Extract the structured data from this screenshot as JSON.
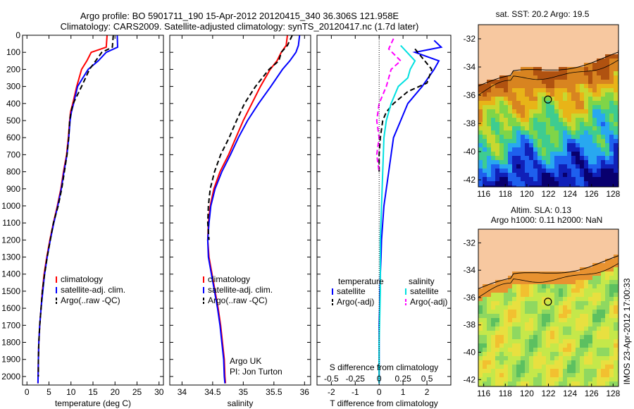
{
  "header": {
    "title_line1": "Argo profile: BO 5901711_190 15-Apr-2012 20120415_340 36.306S 121.958E",
    "title_line2": "Climatology: CARS2009. Satellite-adjusted climatology: synTS_20120417.nc (1.7d later)"
  },
  "colors": {
    "climatology": "#ff0000",
    "satellite": "#0000ff",
    "argo": "#000000",
    "salinity_satellite": "#00e0e0",
    "salinity_argo": "#ff00ff",
    "land": "#f7c8a0"
  },
  "depth_axis": {
    "ticks": [
      0,
      100,
      200,
      300,
      400,
      500,
      600,
      700,
      800,
      900,
      1000,
      1100,
      1200,
      1300,
      1400,
      1500,
      1600,
      1700,
      1800,
      1900,
      2000
    ],
    "ylim": [
      0,
      2050
    ],
    "reversed": true
  },
  "chart_data": [
    {
      "type": "line",
      "id": "temperature",
      "xlabel": "temperature (deg C)",
      "xlim": [
        -1,
        31
      ],
      "xticks": [
        0,
        5,
        10,
        15,
        20,
        25,
        30
      ],
      "legend": [
        "climatology",
        "satellite-adj. clim.",
        "Argo(..raw -QC)"
      ],
      "legend_placement": "lower-center",
      "series": [
        {
          "name": "climatology",
          "style": "solid",
          "x": [
            18.2,
            18.0,
            14.6,
            13.6,
            12.4,
            11.3,
            10.4,
            9.9,
            9.7,
            9.4,
            9.0,
            8.3,
            7.7,
            6.9,
            6.0,
            5.2,
            4.5,
            3.9,
            3.5,
            3.2,
            2.9,
            2.7,
            2.6,
            2.5
          ],
          "y": [
            0,
            70,
            100,
            150,
            200,
            300,
            400,
            450,
            500,
            600,
            700,
            800,
            900,
            1000,
            1100,
            1200,
            1300,
            1400,
            1500,
            1600,
            1700,
            1800,
            1900,
            2040
          ]
        },
        {
          "name": "satellite-adj. clim.",
          "style": "solid",
          "x": [
            20.5,
            20.6,
            18.0,
            16.2,
            13.9,
            11.5,
            10.6,
            10.1,
            9.8,
            9.5,
            9.1,
            8.4,
            7.8,
            7.0,
            6.1,
            5.3,
            4.6,
            4.0,
            3.6,
            3.2,
            2.9,
            2.7,
            2.6,
            2.5
          ],
          "y": [
            0,
            70,
            100,
            150,
            200,
            300,
            400,
            450,
            500,
            600,
            700,
            800,
            900,
            1000,
            1100,
            1200,
            1300,
            1400,
            1500,
            1600,
            1700,
            1800,
            1900,
            2040
          ]
        },
        {
          "name": "Argo(..raw -QC)",
          "style": "dashed",
          "x": [
            19.6,
            19.4,
            17.0,
            15.6,
            14.2,
            12.4,
            10.5,
            10.0,
            9.7,
            9.5,
            9.1,
            8.5,
            7.9,
            7.1,
            6.0,
            5.3,
            4.6,
            4.0,
            3.5,
            3.2,
            2.9,
            2.7,
            2.6,
            2.6
          ],
          "y": [
            0,
            70,
            100,
            150,
            200,
            300,
            400,
            450,
            500,
            600,
            700,
            800,
            900,
            1000,
            1100,
            1200,
            1300,
            1400,
            1500,
            1600,
            1700,
            1800,
            1900,
            2000
          ]
        }
      ]
    },
    {
      "type": "line",
      "id": "salinity",
      "xlabel": "salinity",
      "xlim": [
        33.8,
        36.1
      ],
      "xticks": [
        34,
        34.5,
        35,
        35.5,
        36
      ],
      "xtick_labels": [
        "34",
        "34.5",
        "35",
        "35.5",
        "36"
      ],
      "legend": [
        "climatology",
        "satellite-adj. clim.",
        "Argo(..raw -QC)"
      ],
      "legend_placement": "lower-center",
      "annotation": [
        "Argo UK",
        "PI: Jon Turton"
      ],
      "series": [
        {
          "name": "climatology",
          "style": "solid",
          "x": [
            35.72,
            35.7,
            35.62,
            35.55,
            35.44,
            35.28,
            35.14,
            35.0,
            34.88,
            34.76,
            34.62,
            34.52,
            34.46,
            34.43,
            34.42,
            34.44,
            34.49,
            34.54,
            34.59,
            34.63,
            34.66,
            34.69,
            34.7,
            34.71
          ],
          "y": [
            0,
            60,
            100,
            150,
            200,
            300,
            400,
            500,
            600,
            700,
            800,
            900,
            1000,
            1100,
            1200,
            1300,
            1400,
            1500,
            1600,
            1700,
            1800,
            1900,
            2000,
            2040
          ]
        },
        {
          "name": "satellite-adj. clim.",
          "style": "solid",
          "x": [
            35.92,
            35.9,
            35.86,
            35.76,
            35.64,
            35.45,
            35.25,
            35.07,
            34.92,
            34.79,
            34.65,
            34.54,
            34.47,
            34.44,
            34.42,
            34.43,
            34.48,
            34.53,
            34.58,
            34.62,
            34.65,
            34.68,
            34.69,
            34.7
          ],
          "y": [
            0,
            60,
            100,
            150,
            200,
            300,
            400,
            500,
            600,
            700,
            800,
            900,
            1000,
            1100,
            1200,
            1300,
            1400,
            1500,
            1600,
            1700,
            1800,
            1900,
            2000,
            2040
          ]
        },
        {
          "name": "Argo(..raw -QC)",
          "style": "dashed",
          "x": [
            35.8,
            35.76,
            35.72,
            35.62,
            35.58,
            35.42,
            35.2,
            35.02,
            34.89,
            34.77,
            34.63,
            34.53,
            34.46,
            34.43,
            34.42,
            34.44
          ],
          "y": [
            0,
            30,
            60,
            100,
            150,
            200,
            300,
            400,
            500,
            600,
            700,
            800,
            900,
            1000,
            1100,
            1200
          ]
        }
      ]
    },
    {
      "type": "line",
      "id": "difference",
      "xlabel": "T difference from climatology",
      "xlabel_top": "S difference from climatology",
      "xlim": [
        -2.6,
        3.0
      ],
      "xticks_T": [
        -2,
        -1,
        0,
        1,
        2
      ],
      "xticks_S": [
        -0.5,
        -0.25,
        0,
        0.25,
        0.5
      ],
      "xtick_labels_S": [
        "-0.5",
        "-0.25",
        "0",
        "0.25",
        "0.5"
      ],
      "legend_temperature_title": "temperature",
      "legend_salinity_title": "salinity",
      "legend": [
        "satellite",
        "Argo(-adj)",
        "satellite",
        "Argo(-adj)"
      ],
      "series": [
        {
          "name": "satellite",
          "group": "temperature",
          "style": "solid",
          "x": [
            2.3,
            2.6,
            1.5,
            2.5,
            2.3,
            1.8,
            1.2,
            0.9,
            0.6,
            0.5,
            0.4,
            0.3,
            0.2,
            0.15,
            0.1,
            0.08,
            0.05,
            0.03,
            0.02,
            0.0,
            0.0,
            0.0,
            0.0
          ],
          "y": [
            30,
            70,
            100,
            150,
            200,
            300,
            400,
            500,
            600,
            700,
            800,
            900,
            1000,
            1100,
            1200,
            1300,
            1400,
            1500,
            1600,
            1700,
            1800,
            1900,
            2040
          ]
        },
        {
          "name": "Argo(-adj)",
          "group": "temperature",
          "style": "dashed",
          "x": [
            1.5,
            2.2,
            2.0,
            1.2,
            0.6,
            0.3,
            0.15,
            0.05,
            0.0,
            0.0
          ],
          "y": [
            80,
            200,
            280,
            330,
            400,
            450,
            500,
            600,
            700,
            800
          ]
        },
        {
          "name": "satellite",
          "group": "salinity",
          "style": "solid",
          "x": [
            0.9,
            1.5,
            1.3,
            1.2,
            0.8,
            0.5,
            0.3,
            0.2,
            0.15,
            0.1,
            0.05,
            0.05,
            0.0,
            0.0
          ],
          "y": [
            60,
            150,
            200,
            250,
            300,
            400,
            500,
            600,
            800,
            1000,
            1200,
            1500,
            1800,
            2040
          ]
        },
        {
          "name": "Argo(-adj)",
          "group": "salinity",
          "style": "dashed",
          "x": [
            0.6,
            0.4,
            0.9,
            0.5,
            0.3,
            0.0,
            -0.1,
            0.0,
            -0.1,
            0.0
          ],
          "y": [
            20,
            80,
            150,
            200,
            300,
            400,
            500,
            600,
            700,
            800
          ]
        }
      ]
    },
    {
      "type": "heatmap",
      "id": "sst-map",
      "title": "sat. SST: 20.2  Argo: 19.5",
      "xticks": [
        116,
        118,
        120,
        122,
        124,
        126,
        128
      ],
      "yticks": [
        -32,
        -34,
        -36,
        -38,
        -40,
        -42
      ],
      "xlim": [
        115.5,
        128.5
      ],
      "ylim": [
        -42.5,
        -31
      ],
      "marker": {
        "lon": 121.958,
        "lat": -36.306
      }
    },
    {
      "type": "heatmap",
      "id": "sla-map",
      "title_line1": "Altim. SLA: 0.13",
      "title_line2": "Argo h1000: 0.11  h2000: NaN",
      "xticks": [
        116,
        118,
        120,
        122,
        124,
        126,
        128
      ],
      "yticks": [
        -32,
        -34,
        -36,
        -38,
        -40,
        -42
      ],
      "xlim": [
        115.5,
        128.5
      ],
      "ylim": [
        -42.5,
        -31
      ],
      "marker": {
        "lon": 121.958,
        "lat": -36.306
      }
    }
  ],
  "side_stamp": "IMOS 23-Apr-2012 17:00:33"
}
